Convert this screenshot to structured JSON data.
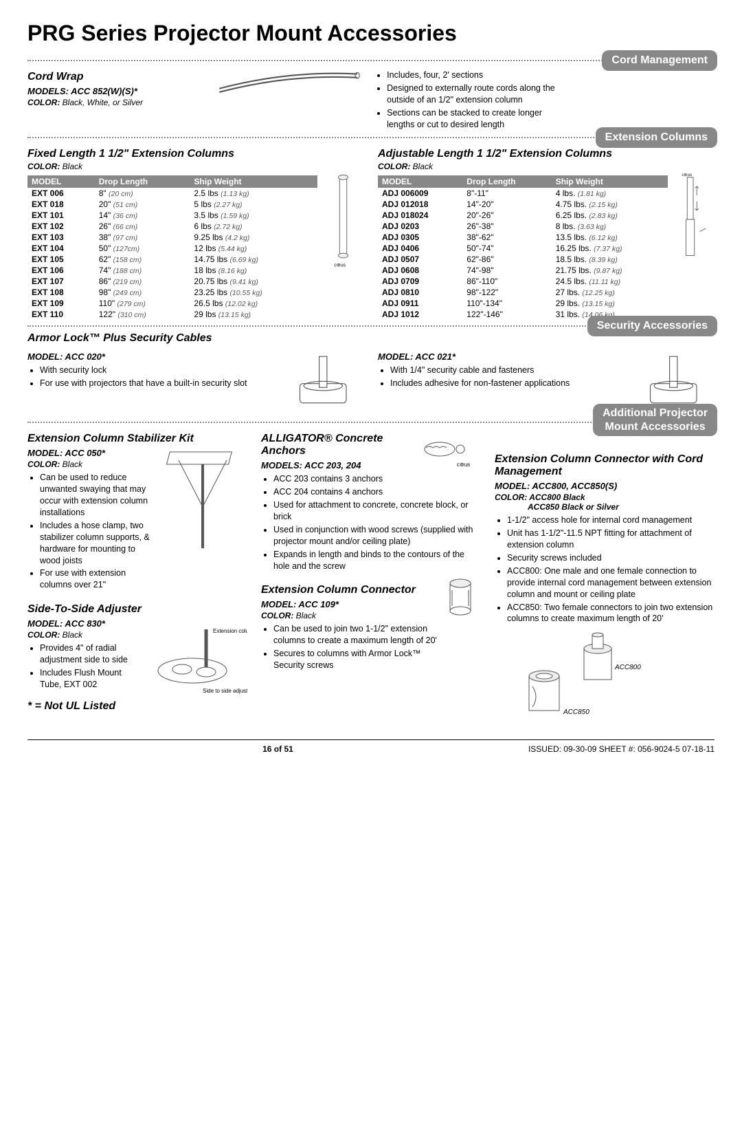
{
  "page": {
    "title": "PRG Series Projector Mount Accessories",
    "footnote": "* = Not UL Listed",
    "footer_center": "16 of 51",
    "footer_right": "ISSUED: 09-30-09   SHEET #: 056-9024-5  07-18-11"
  },
  "cord_mgmt": {
    "tab": "Cord Management",
    "cord_wrap": {
      "title": "Cord Wrap",
      "models_label": "MODELS:",
      "models": "ACC 852(W)(S)*",
      "color_label": "COLOR:",
      "color": "Black, White, or Silver",
      "bullets": [
        "Includes, four, 2' sections",
        "Designed to externally route cords along the outside of an 1/2\" extension column",
        "Sections can be stacked to create longer lengths or cut to desired length"
      ]
    }
  },
  "ext_cols": {
    "tab": "Extension Columns",
    "fixed": {
      "title": "Fixed Length 1 1/2\" Extension Columns",
      "color_label": "COLOR:",
      "color": "Black",
      "headers": {
        "model": "MODEL",
        "drop": "Drop Length",
        "ship": "Ship Weight"
      },
      "rows": [
        {
          "m": "EXT 006",
          "d": "8\"",
          "dm": "(20 cm)",
          "s": "2.5 lbs",
          "sm": "(1.13 kg)"
        },
        {
          "m": "EXT 018",
          "d": "20\"",
          "dm": "(51 cm)",
          "s": "5 lbs",
          "sm": "(2.27 kg)"
        },
        {
          "m": "EXT 101",
          "d": "14\"",
          "dm": "(36 cm)",
          "s": "3.5 lbs",
          "sm": "(1.59 kg)"
        },
        {
          "m": "EXT 102",
          "d": "26\"",
          "dm": "(66 cm)",
          "s": "6 lbs",
          "sm": "(2.72 kg)"
        },
        {
          "m": "EXT 103",
          "d": "38\"",
          "dm": "(97 cm)",
          "s": "9.25 lbs",
          "sm": "(4.2 kg)"
        },
        {
          "m": "EXT 104",
          "d": "50\"",
          "dm": "(127cm)",
          "s": "12 lbs",
          "sm": "(5.44 kg)"
        },
        {
          "m": "EXT 105",
          "d": "62\"",
          "dm": "(158 cm)",
          "s": "14.75 lbs",
          "sm": "(6.69 kg)"
        },
        {
          "m": "EXT 106",
          "d": "74\"",
          "dm": "(188 cm)",
          "s": "18 lbs",
          "sm": "(8.16 kg)"
        },
        {
          "m": "EXT 107",
          "d": "86\"",
          "dm": "(219 cm)",
          "s": "20.75 lbs",
          "sm": "(9.41 kg)"
        },
        {
          "m": "EXT 108",
          "d": "98\"",
          "dm": "(249 cm)",
          "s": "23.25 lbs",
          "sm": "(10.55 kg)"
        },
        {
          "m": "EXT 109",
          "d": "110\"",
          "dm": "(279 cm)",
          "s": "26.5 lbs",
          "sm": "(12.02 kg)"
        },
        {
          "m": "EXT 110",
          "d": "122\"",
          "dm": "(310 cm)",
          "s": "29 lbs",
          "sm": "(13.15 kg)"
        }
      ]
    },
    "adjustable": {
      "title": "Adjustable Length 1 1/2\" Extension Columns",
      "color_label": "COLOR:",
      "color": "Black",
      "headers": {
        "model": "MODEL",
        "drop": "Drop Length",
        "ship": "Ship Weight"
      },
      "rows": [
        {
          "m": "ADJ 006009",
          "d": "8\"-11\"",
          "s": "4 lbs.",
          "sm": "(1.81 kg)"
        },
        {
          "m": "ADJ 012018",
          "d": "14\"-20\"",
          "s": "4.75 lbs.",
          "sm": "(2.15 kg)"
        },
        {
          "m": "ADJ 018024",
          "d": "20\"-26\"",
          "s": "6.25 lbs.",
          "sm": "(2.83 kg)"
        },
        {
          "m": "ADJ 0203",
          "d": "26\"-38\"",
          "s": "8 lbs.",
          "sm": "(3.63 kg)"
        },
        {
          "m": "ADJ 0305",
          "d": "38\"-62\"",
          "s": "13.5 lbs.",
          "sm": "(6.12 kg)"
        },
        {
          "m": "ADJ 0406",
          "d": "50\"-74\"",
          "s": "16.25 lbs.",
          "sm": "(7.37 kg)"
        },
        {
          "m": "ADJ 0507",
          "d": "62\"-86\"",
          "s": "18.5 lbs.",
          "sm": "(8.39 kg)"
        },
        {
          "m": "ADJ 0608",
          "d": "74\"-98\"",
          "s": "21.75 lbs.",
          "sm": "(9.87 kg)"
        },
        {
          "m": "ADJ 0709",
          "d": "86\"-110\"",
          "s": "24.5 lbs.",
          "sm": "(11.11 kg)"
        },
        {
          "m": "ADJ 0810",
          "d": "98\"-122\"",
          "s": "27 lbs.",
          "sm": "(12.25 kg)"
        },
        {
          "m": "ADJ 0911",
          "d": "110\"-134\"",
          "s": "29 lbs.",
          "sm": "(13.15 kg)"
        },
        {
          "m": "ADJ 1012",
          "d": "122\"-146\"",
          "s": "31 lbs.",
          "sm": "(14.06 kg)"
        }
      ]
    }
  },
  "security": {
    "tab": "Security Accessories",
    "armor_lock": {
      "title": "Armor Lock™ Plus Security Cables",
      "left": {
        "model_label": "MODEL:",
        "model": "ACC 020*",
        "bullets": [
          "With security lock",
          "For use with projectors that have a built-in security slot"
        ]
      },
      "right": {
        "model_label": "MODEL:",
        "model": "ACC 021*",
        "bullets": [
          "With 1/4\" security cable and fasteners",
          "Includes adhesive for non-fastener applications"
        ]
      }
    }
  },
  "additional": {
    "tab_l1": "Additional Projector",
    "tab_l2": "Mount Accessories",
    "stabilizer": {
      "title": "Extension Column Stabilizer Kit",
      "model_label": "MODEL:",
      "model": "ACC 050*",
      "color_label": "COLOR:",
      "color": "Black",
      "bullets": [
        "Can be used to reduce unwanted swaying that may occur with extension column installations",
        "Includes a hose clamp, two stabilizer column supports, & hardware for mounting to wood joists",
        "For use with extension columns over 21\""
      ]
    },
    "side_adj": {
      "title": "Side-To-Side Adjuster",
      "model_label": "MODEL:",
      "model": "ACC 830*",
      "color_label": "COLOR:",
      "color": "Black",
      "bullets": [
        "Provides 4\" of radial adjustment side to side",
        "Includes Flush Mount Tube, EXT 002"
      ],
      "callout1": "Extension column",
      "callout2": "Side to side adjuster"
    },
    "alligator": {
      "title": "ALLIGATOR® Concrete Anchors",
      "model_label": "MODELS:",
      "model": "ACC 203, 204",
      "bullets": [
        "ACC 203 contains 3 anchors",
        "ACC 204 contains 4 anchors",
        "Used for attachment to concrete, concrete block, or brick",
        "Used in conjunction with wood screws (supplied with projector mount and/or ceiling plate)",
        "Expands in length and binds to the contours of the hole and the screw"
      ]
    },
    "connector109": {
      "title": "Extension Column Connector",
      "model_label": "MODEL:",
      "model": "ACC 109*",
      "color_label": "COLOR:",
      "color": "Black",
      "bullets": [
        "Can be used to join two 1-1/2\" extension columns to create a maximum length of 20'",
        "Secures to columns with Armor Lock™ Security screws"
      ]
    },
    "connector800": {
      "title": "Extension Column Connector with Cord Management",
      "model_label": "MODEL:",
      "model": "ACC800, ACC850(S)",
      "color_label": "COLOR:",
      "color_a": "ACC800 Black",
      "color_b": "ACC850 Black or Silver",
      "bullets": [
        "1-1/2\" access hole for internal cord management",
        "Unit has 1-1/2\"-11.5 NPT fitting for attachment of extension column",
        "Security screws included",
        "ACC800: One male and one female connection to provide internal cord management between extension column and mount or ceiling plate",
        "ACC850: Two female connectors to join two extension columns to create maximum length of 20'"
      ],
      "label_a": "ACC800",
      "label_b": "ACC850"
    }
  }
}
